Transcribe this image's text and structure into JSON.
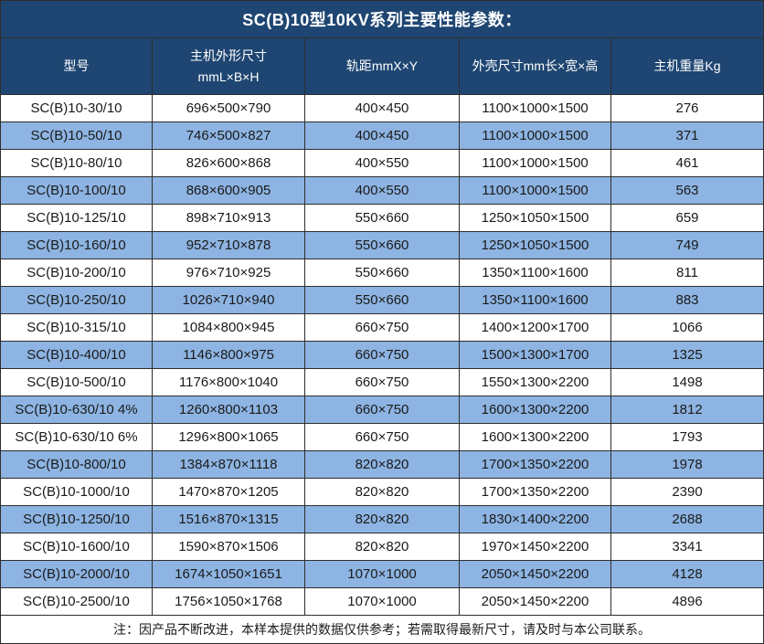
{
  "title": "SC(B)10型10KV系列主要性能参数：",
  "note": "注：因产品不断改进，本样本提供的数据仅供参考；若需取得最新尺寸，请及时与本公司联系。",
  "colors": {
    "header_bg": "#1f4672",
    "stripe_bg": "#8db4e2",
    "border": "#2e2e2e",
    "text": "#1a1a1a",
    "header_text": "#ffffff"
  },
  "table": {
    "columns": [
      {
        "lines": [
          "型号"
        ]
      },
      {
        "lines": [
          "主机外形尺寸",
          "mmL×B×H"
        ]
      },
      {
        "lines": [
          "轨距mmX×Y"
        ]
      },
      {
        "lines": [
          "外壳尺寸mm长×宽×高"
        ]
      },
      {
        "lines": [
          "主机重量Kg"
        ]
      }
    ],
    "rows": [
      [
        "SC(B)10-30/10",
        "696×500×790",
        "400×450",
        "1100×1000×1500",
        "276"
      ],
      [
        "SC(B)10-50/10",
        "746×500×827",
        "400×450",
        "1100×1000×1500",
        "371"
      ],
      [
        "SC(B)10-80/10",
        "826×600×868",
        "400×550",
        "1100×1000×1500",
        "461"
      ],
      [
        "SC(B)10-100/10",
        "868×600×905",
        "400×550",
        "1100×1000×1500",
        "563"
      ],
      [
        "SC(B)10-125/10",
        "898×710×913",
        "550×660",
        "1250×1050×1500",
        "659"
      ],
      [
        "SC(B)10-160/10",
        "952×710×878",
        "550×660",
        "1250×1050×1500",
        "749"
      ],
      [
        "SC(B)10-200/10",
        "976×710×925",
        "550×660",
        "1350×1100×1600",
        "811"
      ],
      [
        "SC(B)10-250/10",
        "1026×710×940",
        "550×660",
        "1350×1100×1600",
        "883"
      ],
      [
        "SC(B)10-315/10",
        "1084×800×945",
        "660×750",
        "1400×1200×1700",
        "1066"
      ],
      [
        "SC(B)10-400/10",
        "1146×800×975",
        "660×750",
        "1500×1300×1700",
        "1325"
      ],
      [
        "SC(B)10-500/10",
        "1176×800×1040",
        "660×750",
        "1550×1300×2200",
        "1498"
      ],
      [
        "SC(B)10-630/10 4%",
        "1260×800×1103",
        "660×750",
        "1600×1300×2200",
        "1812"
      ],
      [
        "SC(B)10-630/10 6%",
        "1296×800×1065",
        "660×750",
        "1600×1300×2200",
        "1793"
      ],
      [
        "SC(B)10-800/10",
        "1384×870×1118",
        "820×820",
        "1700×1350×2200",
        "1978"
      ],
      [
        "SC(B)10-1000/10",
        "1470×870×1205",
        "820×820",
        "1700×1350×2200",
        "2390"
      ],
      [
        "SC(B)10-1250/10",
        "1516×870×1315",
        "820×820",
        "1830×1400×2200",
        "2688"
      ],
      [
        "SC(B)10-1600/10",
        "1590×870×1506",
        "820×820",
        "1970×1450×2200",
        "3341"
      ],
      [
        "SC(B)10-2000/10",
        "1674×1050×1651",
        "1070×1000",
        "2050×1450×2200",
        "4128"
      ],
      [
        "SC(B)10-2500/10",
        "1756×1050×1768",
        "1070×1000",
        "2050×1450×2200",
        "4896"
      ]
    ]
  }
}
